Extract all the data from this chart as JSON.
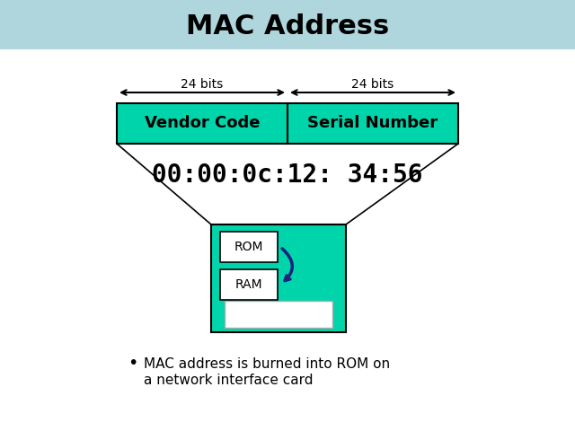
{
  "title": "MAC Address",
  "title_bg_color": "#aed6dc",
  "title_fontsize": 22,
  "teal_color": "#00d4aa",
  "vendor_label": "Vendor Code",
  "serial_label": "Serial Number",
  "mac_address": "00:00:0c:12: 34:56",
  "bits_label": "24 bits",
  "bullet_text_line1": "MAC address is burned into ROM on",
  "bullet_text_line2": "a network interface card",
  "rom_label": "ROM",
  "ram_label": "RAM",
  "arrow_color": "#1a237e",
  "bg_color": "#ffffff"
}
